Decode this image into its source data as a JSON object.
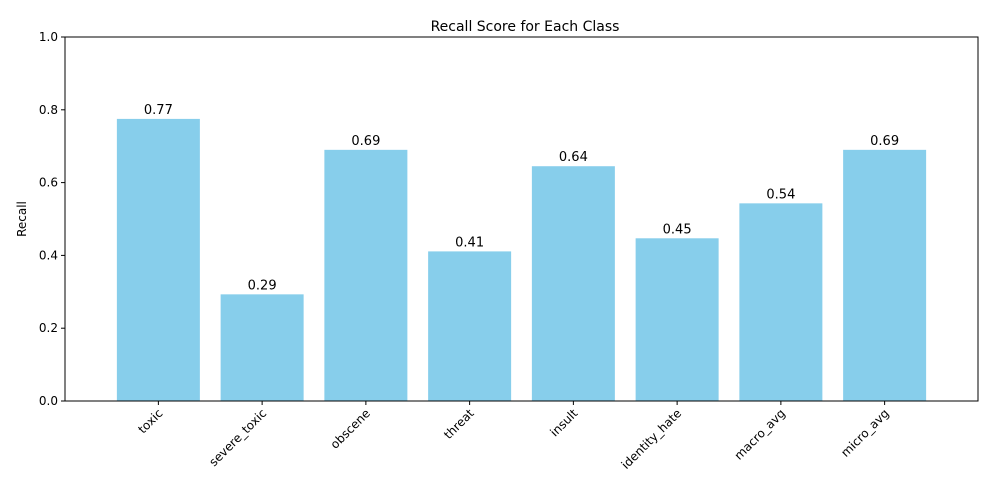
{
  "chart_data": {
    "type": "bar",
    "title": "Recall Score for Each Class",
    "xlabel": "",
    "ylabel": "Recall",
    "categories": [
      "toxic",
      "severe_toxic",
      "obscene",
      "threat",
      "insult",
      "identity_hate",
      "macro_avg",
      "micro_avg"
    ],
    "values": [
      0.775,
      0.293,
      0.69,
      0.411,
      0.645,
      0.447,
      0.543,
      0.69
    ],
    "value_labels": [
      "0.77",
      "0.29",
      "0.69",
      "0.41",
      "0.64",
      "0.45",
      "0.54",
      "0.69"
    ],
    "ylim": [
      0,
      1.0
    ],
    "yticks": [
      0.0,
      0.2,
      0.4,
      0.6,
      0.8,
      1.0
    ],
    "ytick_labels": [
      "0.0",
      "0.2",
      "0.4",
      "0.6",
      "0.8",
      "1.0"
    ],
    "grid": false,
    "legend": "none",
    "bar_color": "#87ceeb",
    "axis_color": "#000000"
  }
}
